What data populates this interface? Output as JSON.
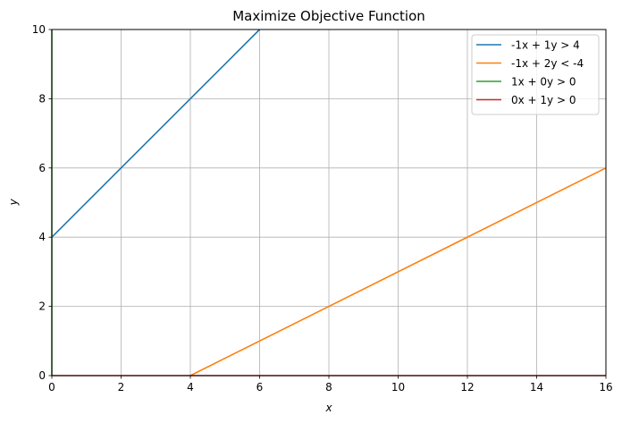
{
  "chart_data": {
    "type": "line",
    "title": "Maximize Objective Function",
    "xlabel": "x",
    "ylabel": "y",
    "xlim": [
      0,
      16
    ],
    "ylim": [
      0,
      10
    ],
    "xticks": [
      0,
      2,
      4,
      6,
      8,
      10,
      12,
      14,
      16
    ],
    "yticks": [
      0,
      2,
      4,
      6,
      8,
      10
    ],
    "grid": true,
    "legend_position": "top-right",
    "series": [
      {
        "name": "-1x + 1y > 4",
        "color": "#1f77b4",
        "x": [
          0,
          6
        ],
        "y": [
          4,
          10
        ]
      },
      {
        "name": "-1x + 2y < -4",
        "color": "#ff7f0e",
        "x": [
          4,
          16
        ],
        "y": [
          0,
          6
        ]
      },
      {
        "name": "1x + 0y > 0",
        "color": "#2ca02c",
        "x": [
          0,
          0
        ],
        "y": [
          0,
          10
        ]
      },
      {
        "name": "0x + 1y > 0",
        "color": "#d62728",
        "x": [
          0,
          16
        ],
        "y": [
          0,
          0
        ]
      }
    ]
  }
}
